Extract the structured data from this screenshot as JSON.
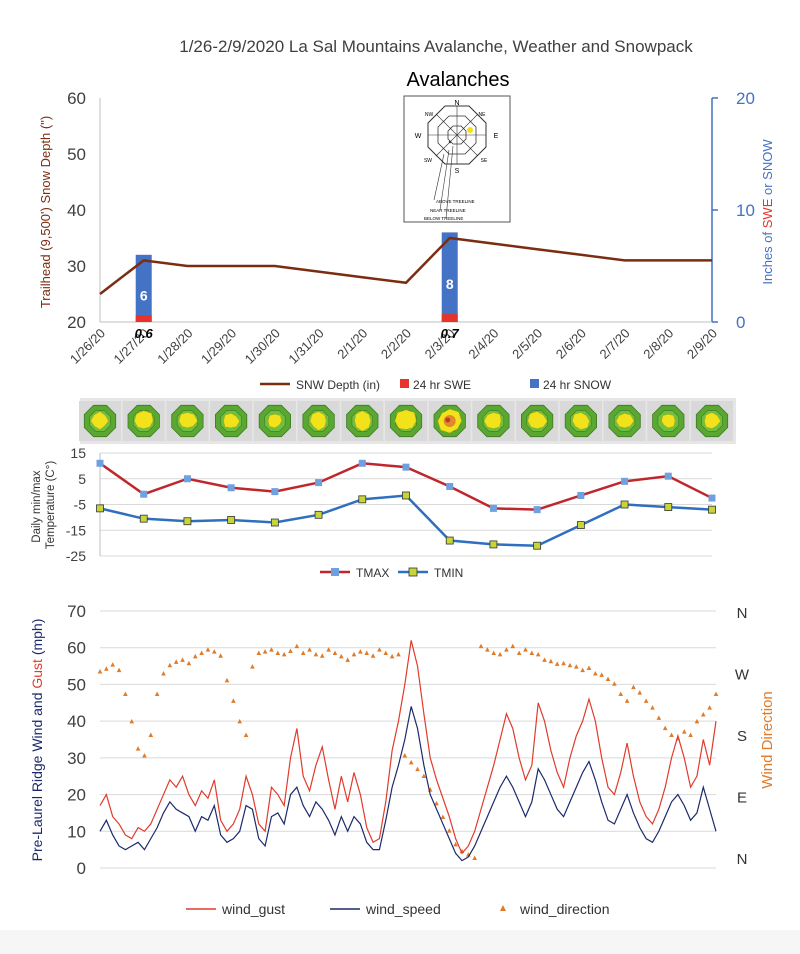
{
  "page_title": "1/26-2/9/2020 La Sal Mountains Avalanche, Weather and Snowpack",
  "colors": {
    "snow_depth": "#7b2d12",
    "swe": "#e8332b",
    "snow": "#4472c4",
    "tmax": "#c0272d",
    "tmin": "#2e6fc0",
    "marker_tmax": "#6fa0e0",
    "marker_tmin": "#c8d53a",
    "wind_gust": "#e03b2c",
    "wind_speed": "#1c2a6b",
    "wind_direction": "#e07b2a",
    "rose_green": "#5aa832",
    "rose_yellow": "#f2e21c"
  },
  "chart_data": [
    {
      "id": "snow",
      "type": "bar",
      "title": "Avalanches",
      "categories": [
        "1/26/20",
        "1/27/20",
        "1/28/20",
        "1/29/20",
        "1/30/20",
        "1/31/20",
        "2/1/20",
        "2/2/20",
        "2/3/20",
        "2/4/20",
        "2/5/20",
        "2/6/20",
        "2/7/20",
        "2/8/20",
        "2/9/20"
      ],
      "ylabel": "Trailhead (9,500') Snow Depth (\")",
      "ylim": [
        20,
        60
      ],
      "yticks": [
        "20",
        "30",
        "40",
        "50",
        "60"
      ],
      "y2label_parts": [
        "Inches of ",
        "SWE",
        " or ",
        "SNOW"
      ],
      "y2lim": [
        0,
        20
      ],
      "y2ticks": [
        "0",
        "10",
        "20"
      ],
      "series": [
        {
          "name": "SNW Depth (in)",
          "type": "line",
          "values": [
            25,
            31,
            30,
            30,
            30,
            29,
            28,
            27,
            35,
            34,
            33,
            32,
            31,
            31,
            31
          ]
        },
        {
          "name": "24 hr SWE",
          "type": "bar",
          "axis": "right",
          "values": [
            0,
            0.6,
            0,
            0,
            0,
            0,
            0,
            0,
            0.7,
            0,
            0,
            0,
            0,
            0,
            0
          ]
        },
        {
          "name": "24 hr SNOW",
          "type": "bar",
          "axis": "right",
          "values": [
            0,
            6,
            0,
            0,
            0,
            0,
            0,
            0,
            8,
            0,
            0,
            0,
            0,
            0,
            0
          ]
        }
      ],
      "bar_labels": {
        "snow": [
          "6",
          "8"
        ],
        "swe": [
          "0.6",
          "0.7"
        ]
      },
      "rose_labels": {
        "n": "N",
        "ne": "NE",
        "e": "E",
        "se": "SE",
        "s": "S",
        "sw": "SW",
        "w": "W",
        "nw": "NW",
        "above": "ABOVE TREELINE",
        "near": "NEAR TREELINE",
        "below": "BELOW TREELINE"
      }
    },
    {
      "id": "temp",
      "type": "line",
      "ylabel_lines": [
        "Daily min/max",
        "Temperature (C°)"
      ],
      "ylim": [
        -25,
        15
      ],
      "yticks": [
        "-25",
        "-15",
        "-5",
        "5",
        "15"
      ],
      "series": [
        {
          "name": "TMAX",
          "values": [
            11,
            -1,
            5,
            1.5,
            0,
            3.5,
            11,
            9.5,
            2,
            -6.5,
            -7,
            -1.5,
            4,
            6,
            -2.5
          ]
        },
        {
          "name": "TMIN",
          "values": [
            -6.5,
            -10.5,
            -11.5,
            -11,
            -12,
            -9,
            -3,
            -1.5,
            -19,
            -20.5,
            -21,
            -13,
            -5,
            -6,
            -7
          ]
        }
      ]
    },
    {
      "id": "wind",
      "type": "line",
      "ylabel_parts": [
        "Pre-Laurel Ridge Wind and ",
        "Gust",
        " (mph)"
      ],
      "ylim": [
        0,
        70
      ],
      "yticks": [
        "0",
        "10",
        "20",
        "30",
        "40",
        "50",
        "60",
        "70"
      ],
      "y2label": "Wind Direction",
      "y2ticks": [
        "N",
        "E",
        "S",
        "W",
        "N"
      ],
      "series": [
        {
          "name": "wind_gust",
          "values": [
            17,
            20,
            14,
            12,
            9,
            8,
            11,
            10,
            12,
            16,
            20,
            24,
            22,
            25,
            20,
            17,
            21,
            19,
            24,
            13,
            10,
            12,
            16,
            25,
            20,
            12,
            10,
            22,
            20,
            17,
            30,
            38,
            25,
            21,
            28,
            33,
            24,
            16,
            25,
            18,
            26,
            20,
            11,
            7,
            8,
            18,
            32,
            40,
            50,
            62,
            55,
            42,
            30,
            24,
            19,
            14,
            8,
            4,
            6,
            10,
            16,
            22,
            28,
            35,
            42,
            38,
            30,
            24,
            28,
            45,
            40,
            32,
            26,
            22,
            30,
            36,
            40,
            46,
            40,
            30,
            22,
            20,
            26,
            34,
            25,
            18,
            14,
            12,
            16,
            22,
            30,
            36,
            30,
            22,
            25,
            35,
            28,
            40
          ]
        },
        {
          "name": "wind_speed",
          "values": [
            10,
            13,
            9,
            6,
            5,
            6,
            7,
            5,
            8,
            11,
            15,
            18,
            16,
            15,
            14,
            10,
            14,
            13,
            17,
            9,
            7,
            8,
            10,
            17,
            16,
            8,
            6,
            14,
            15,
            12,
            20,
            22,
            17,
            14,
            18,
            16,
            13,
            9,
            14,
            10,
            14,
            12,
            7,
            5,
            5,
            13,
            22,
            28,
            35,
            44,
            38,
            28,
            20,
            16,
            12,
            8,
            4,
            2,
            3,
            6,
            10,
            14,
            18,
            22,
            25,
            22,
            18,
            14,
            18,
            27,
            24,
            20,
            16,
            14,
            18,
            22,
            26,
            29,
            24,
            18,
            13,
            12,
            16,
            20,
            15,
            11,
            8,
            7,
            10,
            14,
            18,
            20,
            17,
            13,
            15,
            22,
            16,
            10
          ]
        },
        {
          "name": "wind_direction",
          "values": [
            273,
            277,
            283,
            275,
            240,
            200,
            160,
            150,
            180,
            240,
            270,
            282,
            287,
            290,
            285,
            295,
            300,
            305,
            302,
            296,
            260,
            230,
            200,
            180,
            280,
            300,
            302,
            305,
            300,
            298,
            303,
            310,
            300,
            305,
            298,
            296,
            305,
            300,
            295,
            290,
            298,
            302,
            300,
            296,
            305,
            300,
            295,
            298,
            150,
            140,
            130,
            120,
            100,
            80,
            60,
            40,
            20,
            10,
            5,
            0,
            310,
            305,
            300,
            298,
            305,
            310,
            300,
            305,
            300,
            298,
            290,
            288,
            284,
            285,
            282,
            280,
            275,
            278,
            270,
            268,
            262,
            255,
            240,
            230,
            250,
            242,
            230,
            220,
            205,
            190,
            180,
            175,
            185,
            180,
            200,
            210,
            220,
            240
          ]
        }
      ]
    }
  ]
}
